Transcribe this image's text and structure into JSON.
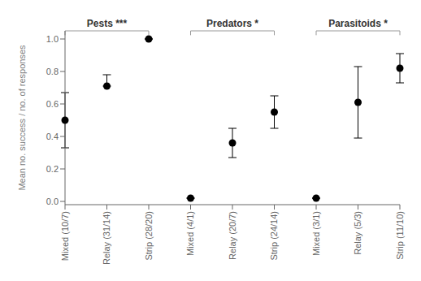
{
  "chart_data": {
    "type": "scatter",
    "categories": [
      "Mixed (10/7)",
      "Relay (31/14)",
      "Strip (28/20)",
      "Mixed (4/1)",
      "Relay (20/7)",
      "Strip (24/14)",
      "Mixed (3/1)",
      "Relay (5/3)",
      "Strip (11/10)"
    ],
    "values": [
      0.5,
      0.71,
      1.0,
      0.02,
      0.36,
      0.55,
      0.02,
      0.61,
      0.82
    ],
    "error_upper": [
      0.17,
      0.07,
      0.0,
      0.0,
      0.09,
      0.1,
      0.0,
      0.22,
      0.09
    ],
    "error_lower": [
      0.17,
      0.0,
      0.0,
      0.0,
      0.09,
      0.1,
      0.0,
      0.22,
      0.09
    ],
    "color": "black",
    "ylabel": "Mean no. success / no. of responses",
    "ylim": [
      -0.02,
      1.05
    ],
    "yticks": [
      {
        "value": 0.0,
        "label": "0.0"
      },
      0.2,
      0.4,
      0.6,
      0.8,
      {
        "value": 1.0,
        "label": "1.0"
      }
    ],
    "grid": false,
    "annotations": [
      {
        "text": "Pests ***",
        "from": "Mixed (10/7)",
        "to": "Strip (28/20)"
      },
      {
        "text": "Predators *",
        "from": "Mixed (4/1)",
        "to": "Strip (24/14)"
      },
      {
        "text": "Parasitoids *",
        "from": "Mixed (3/1)",
        "to": "Strip (11/10)"
      }
    ]
  }
}
